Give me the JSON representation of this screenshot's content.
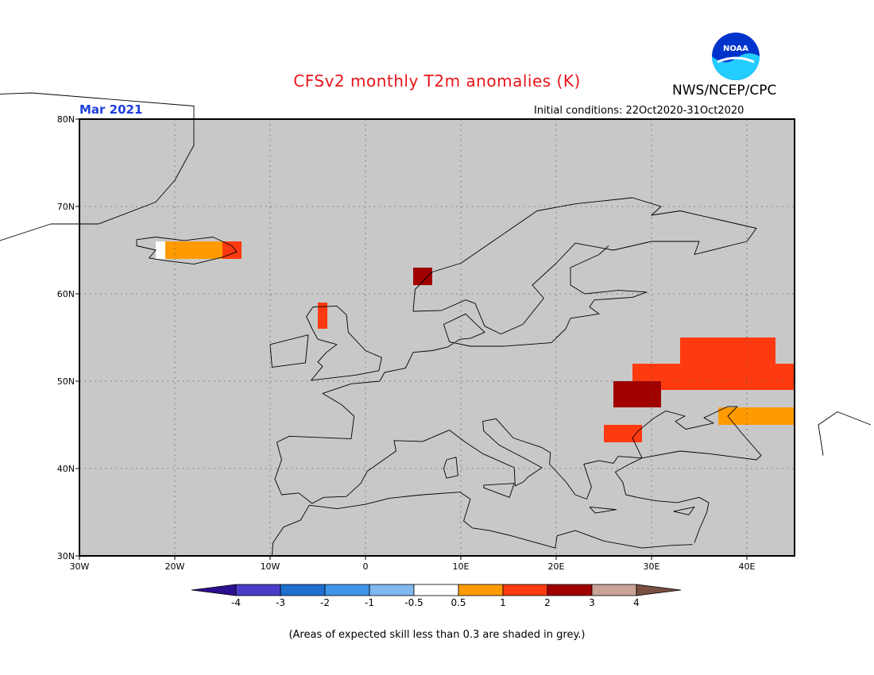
{
  "title": "CFSv2 monthly T2m anomalies (K)",
  "org": "NWS/NCEP/CPC",
  "logo_text": "NOAA",
  "period": "Mar 2021",
  "initial_conditions": "Initial conditions: 22Oct2020-31Oct2020",
  "footnote": "(Areas of expected skill less than 0.3 are shaded in grey.)",
  "map": {
    "lat_range": [
      30,
      80
    ],
    "lon_range": [
      -30,
      45
    ],
    "lat_labels": [
      {
        "lat": 80,
        "text": "80N"
      },
      {
        "lat": 70,
        "text": "70N"
      },
      {
        "lat": 60,
        "text": "60N"
      },
      {
        "lat": 50,
        "text": "50N"
      },
      {
        "lat": 40,
        "text": "40N"
      },
      {
        "lat": 30,
        "text": "30N"
      }
    ],
    "lon_labels": [
      {
        "lon": -30,
        "text": "30W"
      },
      {
        "lon": -20,
        "text": "20W"
      },
      {
        "lon": -10,
        "text": "10W"
      },
      {
        "lon": 0,
        "text": "0"
      },
      {
        "lon": 10,
        "text": "10E"
      },
      {
        "lon": 20,
        "text": "20E"
      },
      {
        "lon": 30,
        "text": "30E"
      },
      {
        "lon": 40,
        "text": "40E"
      }
    ],
    "background_color": "#c8c8c8",
    "anomaly_regions": [
      {
        "name": "Iceland",
        "cells": [
          {
            "lon": -22,
            "lat": 64,
            "w": 3,
            "h": 2,
            "value": 0.3
          },
          {
            "lon": -21,
            "lat": 64,
            "w": 6,
            "h": 2,
            "value": 0.7
          },
          {
            "lon": -15,
            "lat": 64,
            "w": 2,
            "h": 2,
            "value": 1.5
          }
        ]
      },
      {
        "name": "Norway",
        "cells": [
          {
            "lon": 5,
            "lat": 61,
            "w": 2,
            "h": 2,
            "value": 2.5
          },
          {
            "lon": 6,
            "lat": 62,
            "w": 1,
            "h": 1,
            "value": 2.5
          }
        ]
      },
      {
        "name": "Scotland",
        "cells": [
          {
            "lon": -5,
            "lat": 56,
            "w": 1,
            "h": 3,
            "value": 1.5
          }
        ]
      },
      {
        "name": "Ukraine-Russia",
        "cells": [
          {
            "lon": 33,
            "lat": 52,
            "w": 10,
            "h": 3,
            "value": 1.5
          },
          {
            "lon": 28,
            "lat": 49,
            "w": 17,
            "h": 3,
            "value": 1.5
          },
          {
            "lon": 26,
            "lat": 47,
            "w": 5,
            "h": 3,
            "value": 2.5
          },
          {
            "lon": 37,
            "lat": 45,
            "w": 8,
            "h": 2,
            "value": 0.7
          },
          {
            "lon": 25,
            "lat": 43,
            "w": 4,
            "h": 2,
            "value": 1.5
          }
        ]
      }
    ]
  },
  "colorbar": {
    "ticks": [
      "-4",
      "-3",
      "-2",
      "-1",
      "-0.5",
      "0.5",
      "1",
      "2",
      "3",
      "4"
    ],
    "colors": [
      "#2c0f8f",
      "#4b3cc8",
      "#1f6fd0",
      "#3f96e8",
      "#7fb7ee",
      "#ffffff",
      "#ff9b00",
      "#ff3a10",
      "#a00000",
      "#c8a396",
      "#7a5042"
    ]
  }
}
